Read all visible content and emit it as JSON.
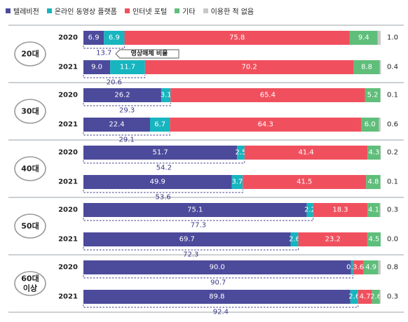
{
  "chart_data": {
    "type": "bar",
    "orientation": "horizontal",
    "stacked": true,
    "normalized": true,
    "title": "",
    "xlim": [
      0,
      100
    ],
    "legend": {
      "position": "top-left",
      "items": [
        {
          "name": "텔레비전",
          "color": "#4c4a9b"
        },
        {
          "name": "온라인 동영상 플랫폼",
          "color": "#17b5bf"
        },
        {
          "name": "인터넷 포털",
          "color": "#f0505e"
        },
        {
          "name": "기타",
          "color": "#5fbe7a"
        },
        {
          "name": "이용한 적 없음",
          "color": "#c8c8c8"
        }
      ]
    },
    "annotation_label": "영상매체 비율",
    "groups": [
      {
        "label": [
          "20대"
        ],
        "rows": [
          {
            "year": "2020",
            "values": [
              6.9,
              6.9,
              75.8,
              9.4,
              1.0
            ],
            "labels": [
              "6.9",
              "6.9",
              "75.8",
              "9.4",
              ""
            ],
            "outside_label": "1.0",
            "sum": "13.7"
          },
          {
            "year": "2021",
            "values": [
              9.0,
              11.7,
              70.2,
              8.8,
              0.4
            ],
            "labels": [
              "9.0",
              "11.7",
              "70.2",
              "8.8",
              ""
            ],
            "outside_label": "0.4",
            "sum": "20.6"
          }
        ]
      },
      {
        "label": [
          "30대"
        ],
        "rows": [
          {
            "year": "2020",
            "values": [
              26.2,
              3.1,
              65.4,
              5.2,
              0.1
            ],
            "labels": [
              "26.2",
              "3.1",
              "65.4",
              "5.2",
              ""
            ],
            "outside_label": "0.1",
            "sum": "29.3"
          },
          {
            "year": "2021",
            "values": [
              22.4,
              6.7,
              64.3,
              6.0,
              0.6
            ],
            "labels": [
              "22.4",
              "6.7",
              "64.3",
              "6.0",
              ""
            ],
            "outside_label": "0.6",
            "sum": "29.1"
          }
        ]
      },
      {
        "label": [
          "40대"
        ],
        "rows": [
          {
            "year": "2020",
            "values": [
              51.7,
              2.5,
              41.4,
              4.3,
              0.2
            ],
            "labels": [
              "51.7",
              "2.5",
              "41.4",
              "4.3",
              ""
            ],
            "outside_label": "0.2",
            "sum": "54.2"
          },
          {
            "year": "2021",
            "values": [
              49.9,
              3.7,
              41.5,
              4.8,
              0.1
            ],
            "labels": [
              "49.9",
              "3.7",
              "41.5",
              "4.8",
              ""
            ],
            "outside_label": "0.1",
            "sum": "53.6"
          }
        ]
      },
      {
        "label": [
          "50대"
        ],
        "rows": [
          {
            "year": "2020",
            "values": [
              75.1,
              2.2,
              18.3,
              4.1,
              0.3
            ],
            "labels": [
              "75.1",
              "2.2",
              "18.3",
              "4.1",
              ""
            ],
            "outside_label": "0.3",
            "sum": "77.3"
          },
          {
            "year": "2021",
            "values": [
              69.7,
              2.6,
              23.2,
              4.5,
              0.0
            ],
            "labels": [
              "69.7",
              "2.6",
              "23.2",
              "4.5",
              ""
            ],
            "outside_label": "0.0",
            "sum": "72.3"
          }
        ]
      },
      {
        "label": [
          "60대",
          "이상"
        ],
        "rows": [
          {
            "year": "2020",
            "values": [
              90.0,
              0.7,
              3.6,
              4.9,
              0.8
            ],
            "labels": [
              "90.0",
              "0.7",
              "3.6",
              "4.9",
              ""
            ],
            "outside_label": "0.8",
            "sum": "90.7"
          },
          {
            "year": "2021",
            "values": [
              89.8,
              2.6,
              4.7,
              2.6,
              0.3
            ],
            "labels": [
              "89.8",
              "2.6",
              "4.7",
              "2.6",
              ""
            ],
            "outside_label": "0.3",
            "sum": "92.4"
          }
        ]
      }
    ]
  }
}
